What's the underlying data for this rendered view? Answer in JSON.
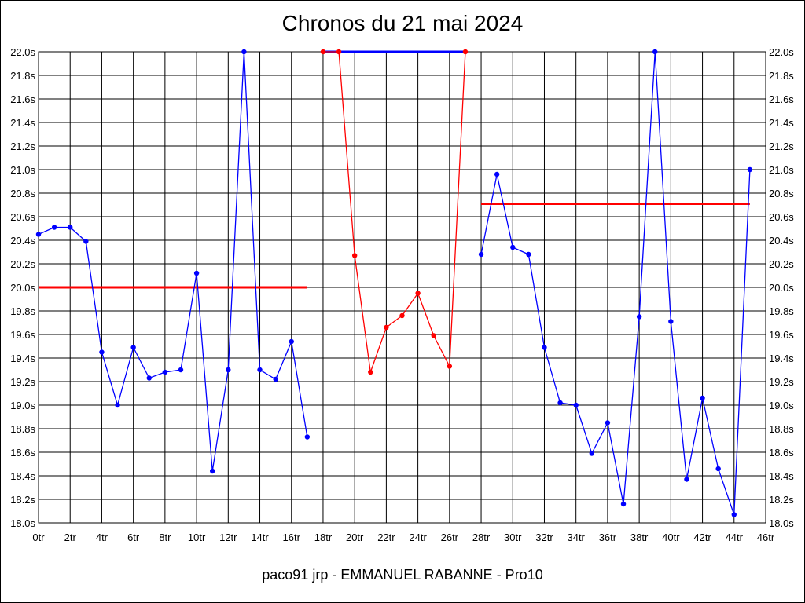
{
  "chart_data": {
    "type": "line",
    "title": "Chronos du 21 mai 2024",
    "footer": "paco91 jrp - EMMANUEL RABANNE - Pro10",
    "xlim": [
      0,
      46
    ],
    "ylim": [
      18.0,
      22.0
    ],
    "x_tick_labels": [
      "0tr",
      "2tr",
      "4tr",
      "6tr",
      "8tr",
      "10tr",
      "12tr",
      "14tr",
      "16tr",
      "18tr",
      "20tr",
      "22tr",
      "24tr",
      "26tr",
      "28tr",
      "30tr",
      "32tr",
      "34tr",
      "36tr",
      "38tr",
      "40tr",
      "42tr",
      "44tr",
      "46tr"
    ],
    "y_tick_labels": [
      "18.0s",
      "18.2s",
      "18.4s",
      "18.6s",
      "18.8s",
      "19.0s",
      "19.2s",
      "19.4s",
      "19.6s",
      "19.8s",
      "20.0s",
      "20.2s",
      "20.4s",
      "20.6s",
      "20.8s",
      "21.0s",
      "21.2s",
      "21.4s",
      "21.6s",
      "21.8s",
      "22.0s"
    ],
    "grid": true,
    "series": [
      {
        "color": "#0000ff",
        "x": [
          0,
          1,
          2,
          3,
          4,
          5,
          6,
          7,
          8,
          9,
          10,
          11,
          12,
          13,
          14,
          15,
          16,
          17
        ],
        "y": [
          20.45,
          20.51,
          20.51,
          20.39,
          19.45,
          19.0,
          19.49,
          19.23,
          19.28,
          19.3,
          20.12,
          18.44,
          19.3,
          22.0,
          19.3,
          19.22,
          19.54,
          18.73
        ]
      },
      {
        "color": "#ff0000",
        "x": [
          18,
          19,
          20,
          21,
          22,
          23,
          24,
          25,
          26,
          27
        ],
        "y": [
          22.0,
          22.0,
          20.27,
          19.28,
          19.66,
          19.76,
          19.95,
          19.59,
          19.33,
          22.0
        ]
      },
      {
        "color": "#0000ff",
        "x": [
          28,
          29,
          30,
          31,
          32,
          33,
          34,
          35,
          36,
          37,
          38,
          39,
          40,
          41,
          42,
          43,
          44,
          45
        ],
        "y": [
          20.28,
          20.96,
          20.34,
          20.28,
          19.49,
          19.02,
          19.0,
          18.59,
          18.85,
          18.16,
          19.75,
          22.0,
          19.71,
          18.37,
          19.06,
          18.46,
          18.07,
          21.0
        ]
      }
    ],
    "reference_lines": [
      {
        "color": "#0000ff",
        "y": 22.0,
        "x_from": 18,
        "x_to": 27
      },
      {
        "color": "#ff0000",
        "y": 20.0,
        "x_from": 0,
        "x_to": 17
      },
      {
        "color": "#ff0000",
        "y": 20.71,
        "x_from": 28,
        "x_to": 45
      }
    ]
  }
}
